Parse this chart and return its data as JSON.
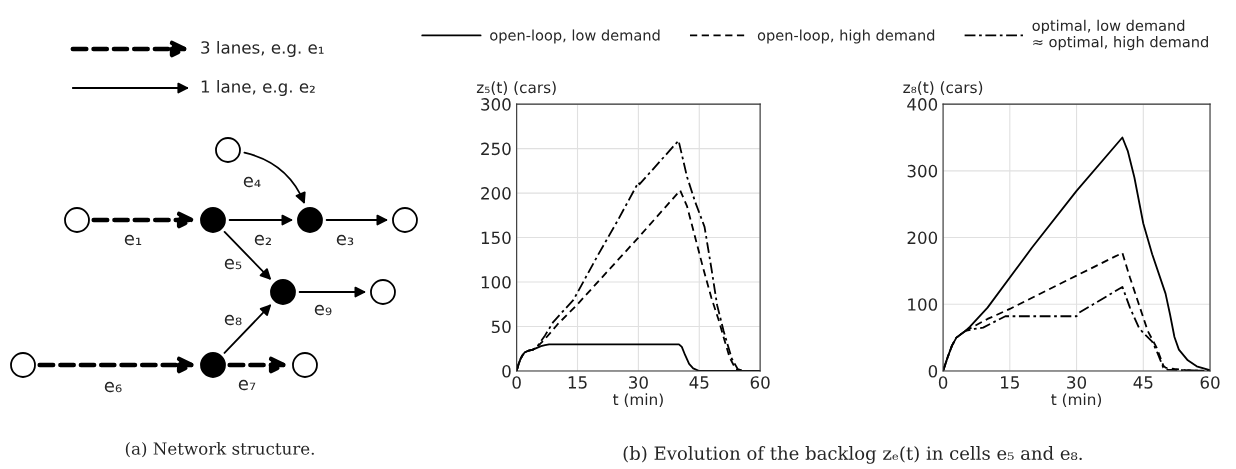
{
  "chart_data": [
    {
      "type": "other",
      "annotations": [
        "3 lanes, e.g. e₁",
        "1 lane, e.g. e₂",
        "e₁",
        "e₂",
        "e₃",
        "e₄",
        "e₅",
        "e₆",
        "e₇",
        "e₈",
        "e₉",
        "(a) Network structure."
      ]
    },
    {
      "type": "line",
      "ylabel": "z₅(t) (cars)",
      "xlabel": "t (min)",
      "xlim": [
        0,
        60
      ],
      "xticks": [
        0,
        15,
        30,
        45,
        60
      ],
      "ylim": [
        0,
        300
      ],
      "yticks": [
        0,
        50,
        100,
        150,
        200,
        250,
        300
      ],
      "grid": true,
      "legend": "top",
      "annotations": [
        "(b) Evolution of the backlog zₑ(t) in cells e₅ and e₈."
      ],
      "series": [
        {
          "name": "open-loop, low demand",
          "color": "#000000",
          "line_style": "solid",
          "x": [
            0,
            0.5,
            1,
            1.5,
            2,
            3,
            4,
            5,
            6,
            7,
            8,
            40,
            40.7,
            41.5,
            42.5,
            43.5,
            45,
            47,
            60
          ],
          "values": [
            0,
            8,
            14,
            18,
            21,
            23,
            24,
            26,
            28,
            29,
            30,
            30,
            27,
            18,
            8,
            3,
            0,
            0,
            0
          ]
        },
        {
          "name": "open-loop, high demand",
          "color": "#000000",
          "line_style": "dashed",
          "x": [
            0,
            0.5,
            1,
            1.5,
            2,
            3,
            4,
            5,
            7,
            10,
            15,
            30,
            40.3,
            42,
            44,
            46,
            48,
            49.8,
            51,
            52.5,
            54,
            55,
            60
          ],
          "values": [
            0,
            8,
            14,
            18,
            21,
            23,
            24,
            27,
            36,
            52,
            75,
            150,
            203,
            185,
            150,
            115,
            82,
            57,
            38,
            15,
            2,
            0,
            0
          ]
        },
        {
          "name": "optimal, low demand\n≈ optimal, high demand",
          "color": "#000000",
          "line_style": "dashdot",
          "x": [
            0,
            0.5,
            1,
            1.5,
            2,
            3,
            4,
            5,
            7,
            9,
            14,
            20,
            25,
            30,
            30.3,
            39.9,
            42,
            44,
            46.3,
            48,
            49.4,
            51,
            53,
            54.5,
            56,
            60
          ],
          "values": [
            0,
            8,
            14,
            18,
            21,
            23,
            24,
            27,
            40,
            55,
            80,
            130,
            170,
            212,
            210,
            259,
            218,
            190,
            162,
            115,
            74,
            45,
            14,
            2,
            0,
            0
          ]
        }
      ]
    },
    {
      "type": "line",
      "ylabel": "z₈(t) (cars)",
      "xlabel": "t (min)",
      "xlim": [
        0,
        60
      ],
      "xticks": [
        0,
        15,
        30,
        45,
        60
      ],
      "ylim": [
        0,
        400
      ],
      "yticks": [
        0,
        100,
        200,
        300,
        400
      ],
      "grid": true,
      "series": [
        {
          "color": "#000000",
          "line_style": "solid",
          "x": [
            0,
            1,
            2,
            3,
            5,
            6,
            10,
            20,
            30,
            40.3,
            41.5,
            43,
            45,
            47,
            50,
            51,
            52,
            53,
            55,
            57,
            60
          ],
          "values": [
            0,
            20,
            38,
            50,
            60,
            66,
            95,
            185,
            270,
            350,
            330,
            290,
            221,
            175,
            116,
            85,
            51,
            32,
            16,
            7,
            1
          ]
        },
        {
          "color": "#000000",
          "line_style": "dashed",
          "x": [
            0,
            1,
            2,
            3,
            5,
            10,
            15,
            30,
            40.3,
            42,
            44,
            46,
            48,
            49.5,
            50,
            52,
            55,
            60
          ],
          "values": [
            0,
            20,
            38,
            50,
            60,
            78,
            93,
            143,
            177,
            140,
            100,
            60,
            35,
            8,
            5,
            3,
            1,
            0
          ]
        },
        {
          "color": "#000000",
          "line_style": "dashdot",
          "x": [
            0,
            1,
            2,
            3,
            5,
            7,
            9,
            14,
            30,
            30.5,
            40.3,
            42,
            44,
            45,
            47,
            48,
            49.5,
            50.5,
            60
          ],
          "values": [
            0,
            20,
            38,
            50,
            60,
            63,
            65,
            82,
            82,
            87,
            126,
            95,
            65,
            57,
            44,
            30,
            5,
            2,
            0
          ]
        }
      ]
    }
  ]
}
